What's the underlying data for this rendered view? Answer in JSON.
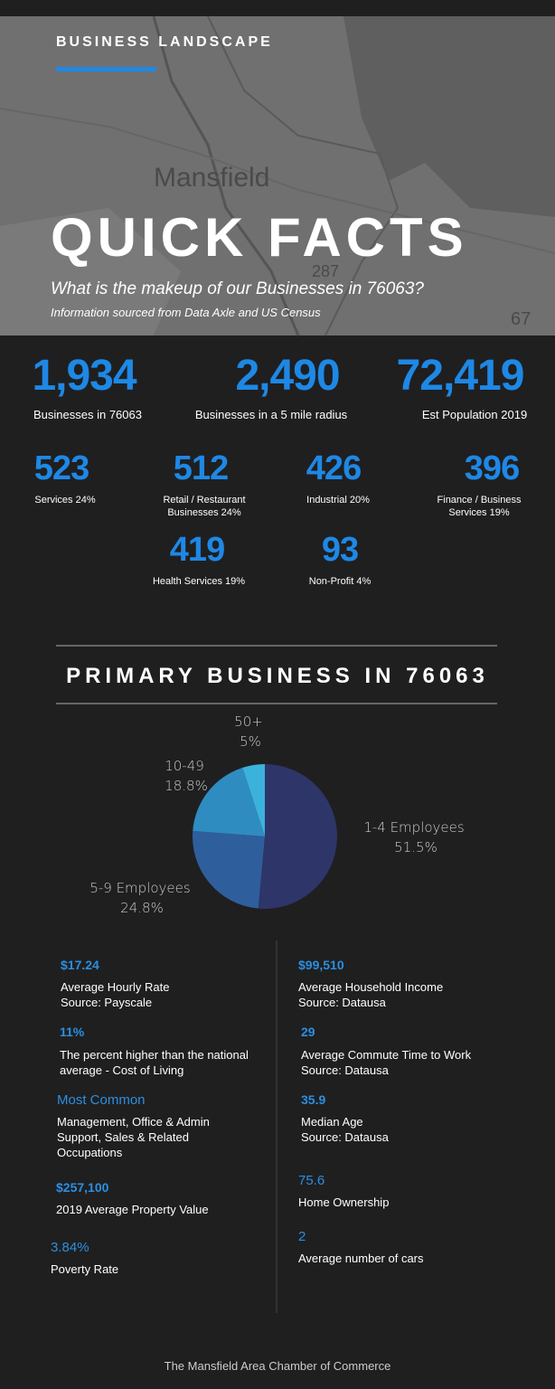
{
  "header": {
    "section_label": "BUSINESS LANDSCAPE",
    "title": "QUICK FACTS",
    "subtitle": "What is the makeup of our Businesses in 76063?",
    "source": "Information sourced from Data Axle and US Census",
    "map_labels": [
      "Mansfield",
      "287",
      "67"
    ]
  },
  "stats_top": [
    {
      "value": "1,934",
      "label": "Businesses in 76063"
    },
    {
      "value": "2,490",
      "label": "Businesses in a 5 mile radius"
    },
    {
      "value": "72,419",
      "label": "Est Population 2019"
    }
  ],
  "stats_sectors": [
    {
      "value": "523",
      "label": "Services 24%"
    },
    {
      "value": "512",
      "label": "Retail / Restaurant Businesses 24%"
    },
    {
      "value": "426",
      "label": "Industrial 20%"
    },
    {
      "value": "396",
      "label": "Finance / Business Services 19%"
    },
    {
      "value": "419",
      "label": "Health Services 19%"
    },
    {
      "value": "93",
      "label": "Non-Profit 4%"
    }
  ],
  "section_title": "PRIMARY BUSINESS IN 76063",
  "chart_data": {
    "type": "pie",
    "categories": [
      "1-4 Employees",
      "5-9 Employees",
      "10-49",
      "50+"
    ],
    "values": [
      51.5,
      24.8,
      18.8,
      5
    ],
    "value_labels": [
      "51.5%",
      "24.8%",
      "18.8%",
      "5%"
    ],
    "colors": [
      "#2e3569",
      "#2f5e9c",
      "#2f8cc0",
      "#3bb2dc"
    ]
  },
  "facts_left": [
    {
      "value": "$17.24",
      "lines": [
        "Average Hourly Rate",
        "Source: Payscale"
      ]
    },
    {
      "value": "11%",
      "lines": [
        "The percent higher than the national",
        "average - Cost of Living"
      ]
    },
    {
      "value": "Most Common",
      "lines": [
        "Management, Office & Admin",
        "Support, Sales & Related",
        "Occupations"
      ]
    },
    {
      "value": "$257,100",
      "lines": [
        "2019 Average Property Value"
      ]
    },
    {
      "value": "3.84%",
      "lines": [
        "Poverty Rate"
      ]
    }
  ],
  "facts_right": [
    {
      "value": "$99,510",
      "lines": [
        "Average Household Income",
        "Source: Datausa"
      ]
    },
    {
      "value": "29",
      "lines": [
        "Average Commute Time to Work",
        "Source: Datausa"
      ]
    },
    {
      "value": "35.9",
      "lines": [
        "Median Age",
        "Source: Datausa"
      ]
    },
    {
      "value": "75.6",
      "lines": [
        "Home Ownership"
      ]
    },
    {
      "value": "2",
      "lines": [
        "Average number of cars"
      ]
    }
  ],
  "footer": "The Mansfield Area Chamber of Commerce"
}
